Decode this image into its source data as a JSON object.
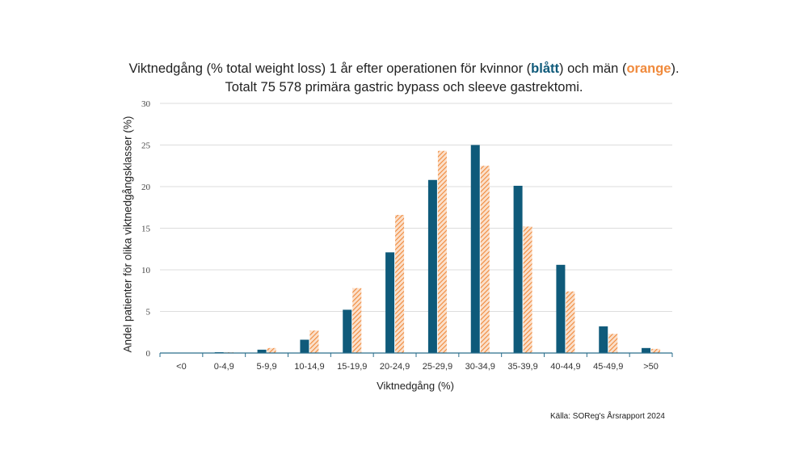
{
  "title": {
    "part1": "Viktnedgång (% total weight loss) 1 år efter operationen för kvinnor (",
    "blue_word": "blått",
    "part2": ") och män (",
    "orange_word": "orange",
    "part3": "). Totalt 75 578 primära gastric bypass och sleeve gastrektomi."
  },
  "source": "Källa: SOReg's Årsrapport 2024",
  "chart_data": {
    "type": "bar",
    "categories": [
      "<0",
      "0-4,9",
      "5-9,9",
      "10-14,9",
      "15-19,9",
      "20-24,9",
      "25-29,9",
      "30-34,9",
      "35-39,9",
      "40-44,9",
      "45-49,9",
      ">50"
    ],
    "series": [
      {
        "name": "kvinnor",
        "color": "#0f5a7a",
        "pattern": "solid",
        "values": [
          0.0,
          0.1,
          0.4,
          1.6,
          5.2,
          12.1,
          20.8,
          25.0,
          20.1,
          10.6,
          3.2,
          0.6
        ]
      },
      {
        "name": "män",
        "color": "#f08a3c",
        "pattern": "hatched",
        "values": [
          0.0,
          0.1,
          0.6,
          2.7,
          7.8,
          16.6,
          24.3,
          22.5,
          15.2,
          7.4,
          2.3,
          0.5
        ]
      }
    ],
    "xlabel": "Viktnedgång (%)",
    "ylabel": "Andel patienter för olika viktnedgångsklasser (%)",
    "ylim": [
      0,
      30
    ],
    "yticks": [
      0,
      5,
      10,
      15,
      20,
      25,
      30
    ],
    "grid": true,
    "legend": "none"
  }
}
